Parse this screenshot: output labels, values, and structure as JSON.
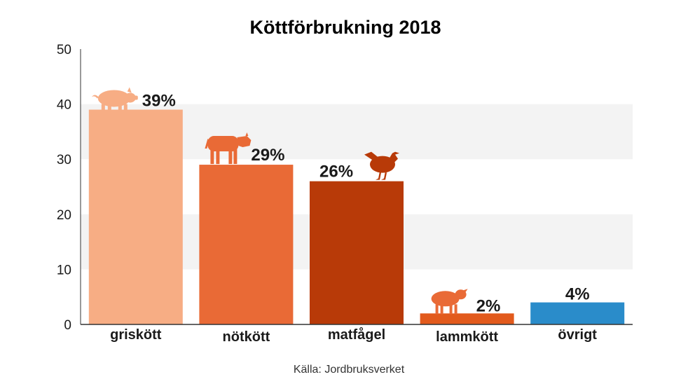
{
  "chart_data": {
    "type": "bar",
    "title": "Köttförbrukning 2018",
    "categories": [
      "griskött",
      "nötkött",
      "matfågel",
      "lammkött",
      "övrigt"
    ],
    "values": [
      39,
      29,
      26,
      2,
      4
    ],
    "data_labels": [
      "39%",
      "29%",
      "26%",
      "2%",
      "4%"
    ],
    "colors": [
      "#f7ad84",
      "#e96a36",
      "#b83a08",
      "#e25a1c",
      "#2a8cca"
    ],
    "icons": [
      "pig-icon",
      "cow-icon",
      "chicken-icon",
      "sheep-icon",
      ""
    ],
    "yticks": [
      "0",
      "10",
      "20",
      "30",
      "40",
      "50"
    ],
    "ylim": [
      0,
      50
    ],
    "grid": "alternating bands",
    "source": "Källa: Jordbruksverket"
  }
}
